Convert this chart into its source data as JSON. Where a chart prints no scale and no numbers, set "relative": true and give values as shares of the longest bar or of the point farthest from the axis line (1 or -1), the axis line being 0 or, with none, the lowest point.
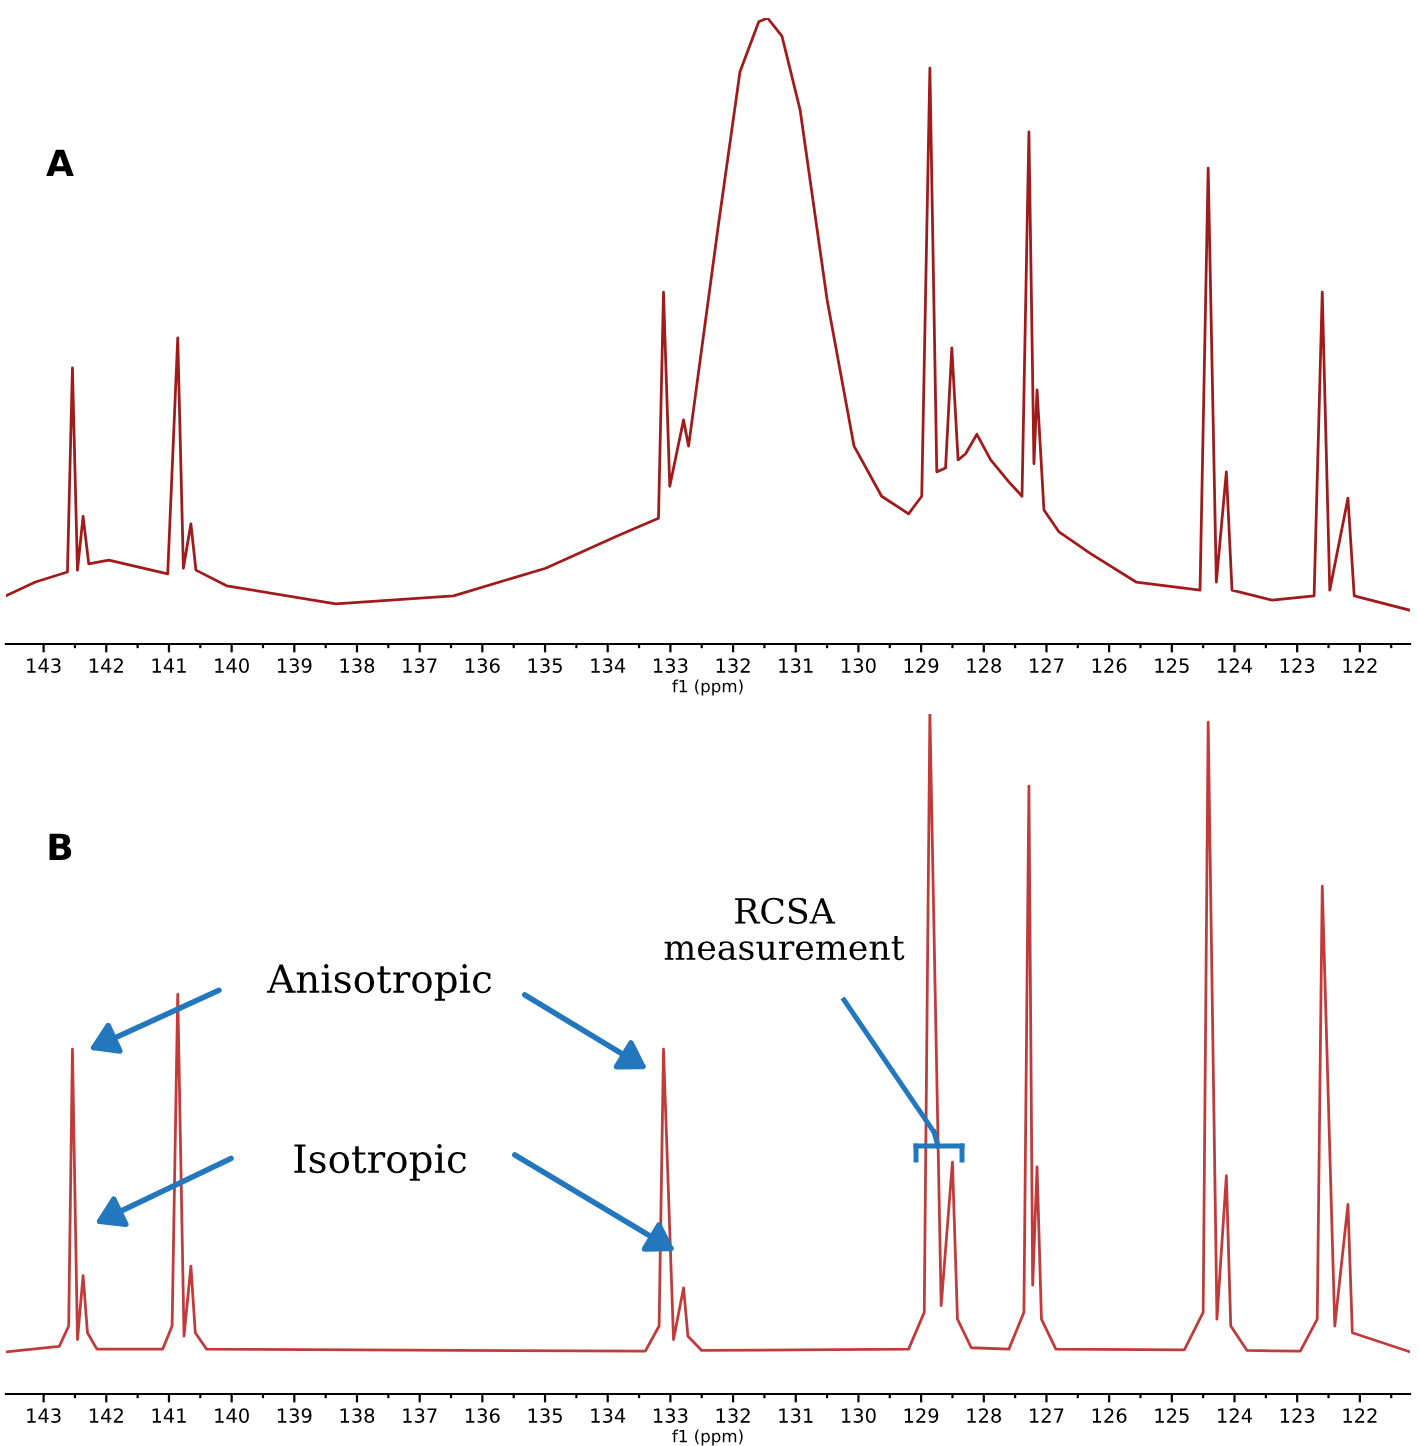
{
  "chart_data": [
    {
      "type": "line",
      "relative": true,
      "xlabel": "f1 (ppm)",
      "grid": false,
      "marker": "none",
      "line_style": "solid",
      "annotations": [
        "A"
      ],
      "xlim": [
        143.6,
        121.2
      ],
      "xticks": [
        143,
        {
          "value": 142.5,
          "label": null
        },
        142,
        {
          "value": 141.5,
          "label": null
        },
        141,
        {
          "value": 140.5,
          "label": null
        },
        140,
        {
          "value": 139.5,
          "label": null
        },
        139,
        {
          "value": 138.5,
          "label": null
        },
        138,
        {
          "value": 137.5,
          "label": null
        },
        137,
        {
          "value": 136.5,
          "label": null
        },
        136,
        {
          "value": 135.5,
          "label": null
        },
        135,
        {
          "value": 134.5,
          "label": null
        },
        134,
        {
          "value": 133.5,
          "label": null
        },
        133,
        {
          "value": 132.5,
          "label": null
        },
        132,
        {
          "value": 131.5,
          "label": null
        },
        131,
        {
          "value": 130.5,
          "label": null
        },
        130,
        {
          "value": 129.5,
          "label": null
        },
        129,
        {
          "value": 128.5,
          "label": null
        },
        128,
        {
          "value": 127.5,
          "label": null
        },
        127,
        {
          "value": 126.5,
          "label": null
        },
        126,
        {
          "value": 125.5,
          "label": null
        },
        125,
        {
          "value": 124.5,
          "label": null
        },
        124,
        {
          "value": 123.5,
          "label": null
        },
        123,
        {
          "value": 122.5,
          "label": null
        },
        122,
        {
          "value": 121.5,
          "label": null
        }
      ],
      "x": [
        143.6,
        143.13,
        142.62,
        142.54,
        142.46,
        142.37,
        142.28,
        141.96,
        141.02,
        140.86,
        140.77,
        140.65,
        140.57,
        140.08,
        138.34,
        136.46,
        134.99,
        133.84,
        133.19,
        133.11,
        133.01,
        132.79,
        132.71,
        132.24,
        131.89,
        131.59,
        131.45,
        131.22,
        130.93,
        130.5,
        130.07,
        129.63,
        129.2,
        128.99,
        128.86,
        128.75,
        128.61,
        128.51,
        128.41,
        128.29,
        128.11,
        127.89,
        127.6,
        127.39,
        127.28,
        127.2,
        127.15,
        127.04,
        126.8,
        126.29,
        125.57,
        124.55,
        124.42,
        124.29,
        124.13,
        124.04,
        123.4,
        122.73,
        122.6,
        122.48,
        122.19,
        122.09,
        121.2
      ],
      "series": [
        {
          "color": "#a01c1c",
          "values": [
            0.077,
            0.099,
            0.115,
            0.441,
            0.118,
            0.204,
            0.128,
            0.134,
            0.112,
            0.489,
            0.121,
            0.192,
            0.118,
            0.093,
            0.064,
            0.077,
            0.121,
            0.173,
            0.201,
            0.562,
            0.252,
            0.358,
            0.316,
            0.665,
            0.914,
            0.994,
            1,
            0.971,
            0.853,
            0.55,
            0.316,
            0.236,
            0.208,
            0.236,
            0.92,
            0.275,
            0.281,
            0.473,
            0.294,
            0.304,
            0.335,
            0.294,
            0.259,
            0.236,
            0.818,
            0.288,
            0.406,
            0.214,
            0.179,
            0.144,
            0.099,
            0.086,
            0.76,
            0.099,
            0.275,
            0.086,
            0.07,
            0.077,
            0.562,
            0.086,
            0.233,
            0.077,
            0.054
          ]
        }
      ]
    },
    {
      "type": "line",
      "relative": true,
      "xlabel": "f1 (ppm)",
      "grid": false,
      "marker": "none",
      "line_style": "solid",
      "annotations": [
        "B",
        "Anisotropic",
        "Isotropic",
        "RCSA\nmeasurement"
      ],
      "xlim": [
        143.6,
        121.2
      ],
      "xticks": [
        143,
        {
          "value": 142.5,
          "label": null
        },
        142,
        {
          "value": 141.5,
          "label": null
        },
        141,
        {
          "value": 140.5,
          "label": null
        },
        140,
        {
          "value": 139.5,
          "label": null
        },
        139,
        {
          "value": 138.5,
          "label": null
        },
        138,
        {
          "value": 137.5,
          "label": null
        },
        137,
        {
          "value": 136.5,
          "label": null
        },
        136,
        {
          "value": 135.5,
          "label": null
        },
        135,
        {
          "value": 134.5,
          "label": null
        },
        134,
        {
          "value": 133.5,
          "label": null
        },
        133,
        {
          "value": 132.5,
          "label": null
        },
        132,
        {
          "value": 131.5,
          "label": null
        },
        131,
        {
          "value": 130.5,
          "label": null
        },
        130,
        {
          "value": 129.5,
          "label": null
        },
        129,
        {
          "value": 128.5,
          "label": null
        },
        128,
        {
          "value": 127.5,
          "label": null
        },
        127,
        {
          "value": 126.5,
          "label": null
        },
        126,
        {
          "value": 125.5,
          "label": null
        },
        125,
        {
          "value": 124.5,
          "label": null
        },
        124,
        {
          "value": 123.5,
          "label": null
        },
        123,
        {
          "value": 122.5,
          "label": null
        },
        122,
        {
          "value": 121.5,
          "label": null
        }
      ],
      "x": [
        143.6,
        142.75,
        142.6,
        142.54,
        142.46,
        142.37,
        142.3,
        142.15,
        141.1,
        140.95,
        140.86,
        140.76,
        140.65,
        140.58,
        140.4,
        133.4,
        133.18,
        133.11,
        132.95,
        132.79,
        132.72,
        132.5,
        129.2,
        128.95,
        128.86,
        128.68,
        128.5,
        128.42,
        128.2,
        127.6,
        127.36,
        127.28,
        127.22,
        127.15,
        127.08,
        126.85,
        124.8,
        124.5,
        124.42,
        124.28,
        124.13,
        124.06,
        123.8,
        122.95,
        122.68,
        122.6,
        122.4,
        122.19,
        122.12,
        121.2
      ],
      "series": [
        {
          "color": "#c23b3b",
          "values": [
            0.062,
            0.07,
            0.1,
            0.507,
            0.08,
            0.174,
            0.09,
            0.066,
            0.066,
            0.1,
            0.588,
            0.085,
            0.188,
            0.09,
            0.066,
            0.063,
            0.1,
            0.507,
            0.08,
            0.156,
            0.085,
            0.064,
            0.066,
            0.12,
            1.0,
            0.13,
            0.341,
            0.11,
            0.068,
            0.066,
            0.12,
            0.894,
            0.16,
            0.334,
            0.11,
            0.066,
            0.065,
            0.12,
            0.988,
            0.11,
            0.321,
            0.1,
            0.064,
            0.063,
            0.11,
            0.747,
            0.1,
            0.279,
            0.09,
            0.062
          ]
        }
      ]
    }
  ]
}
